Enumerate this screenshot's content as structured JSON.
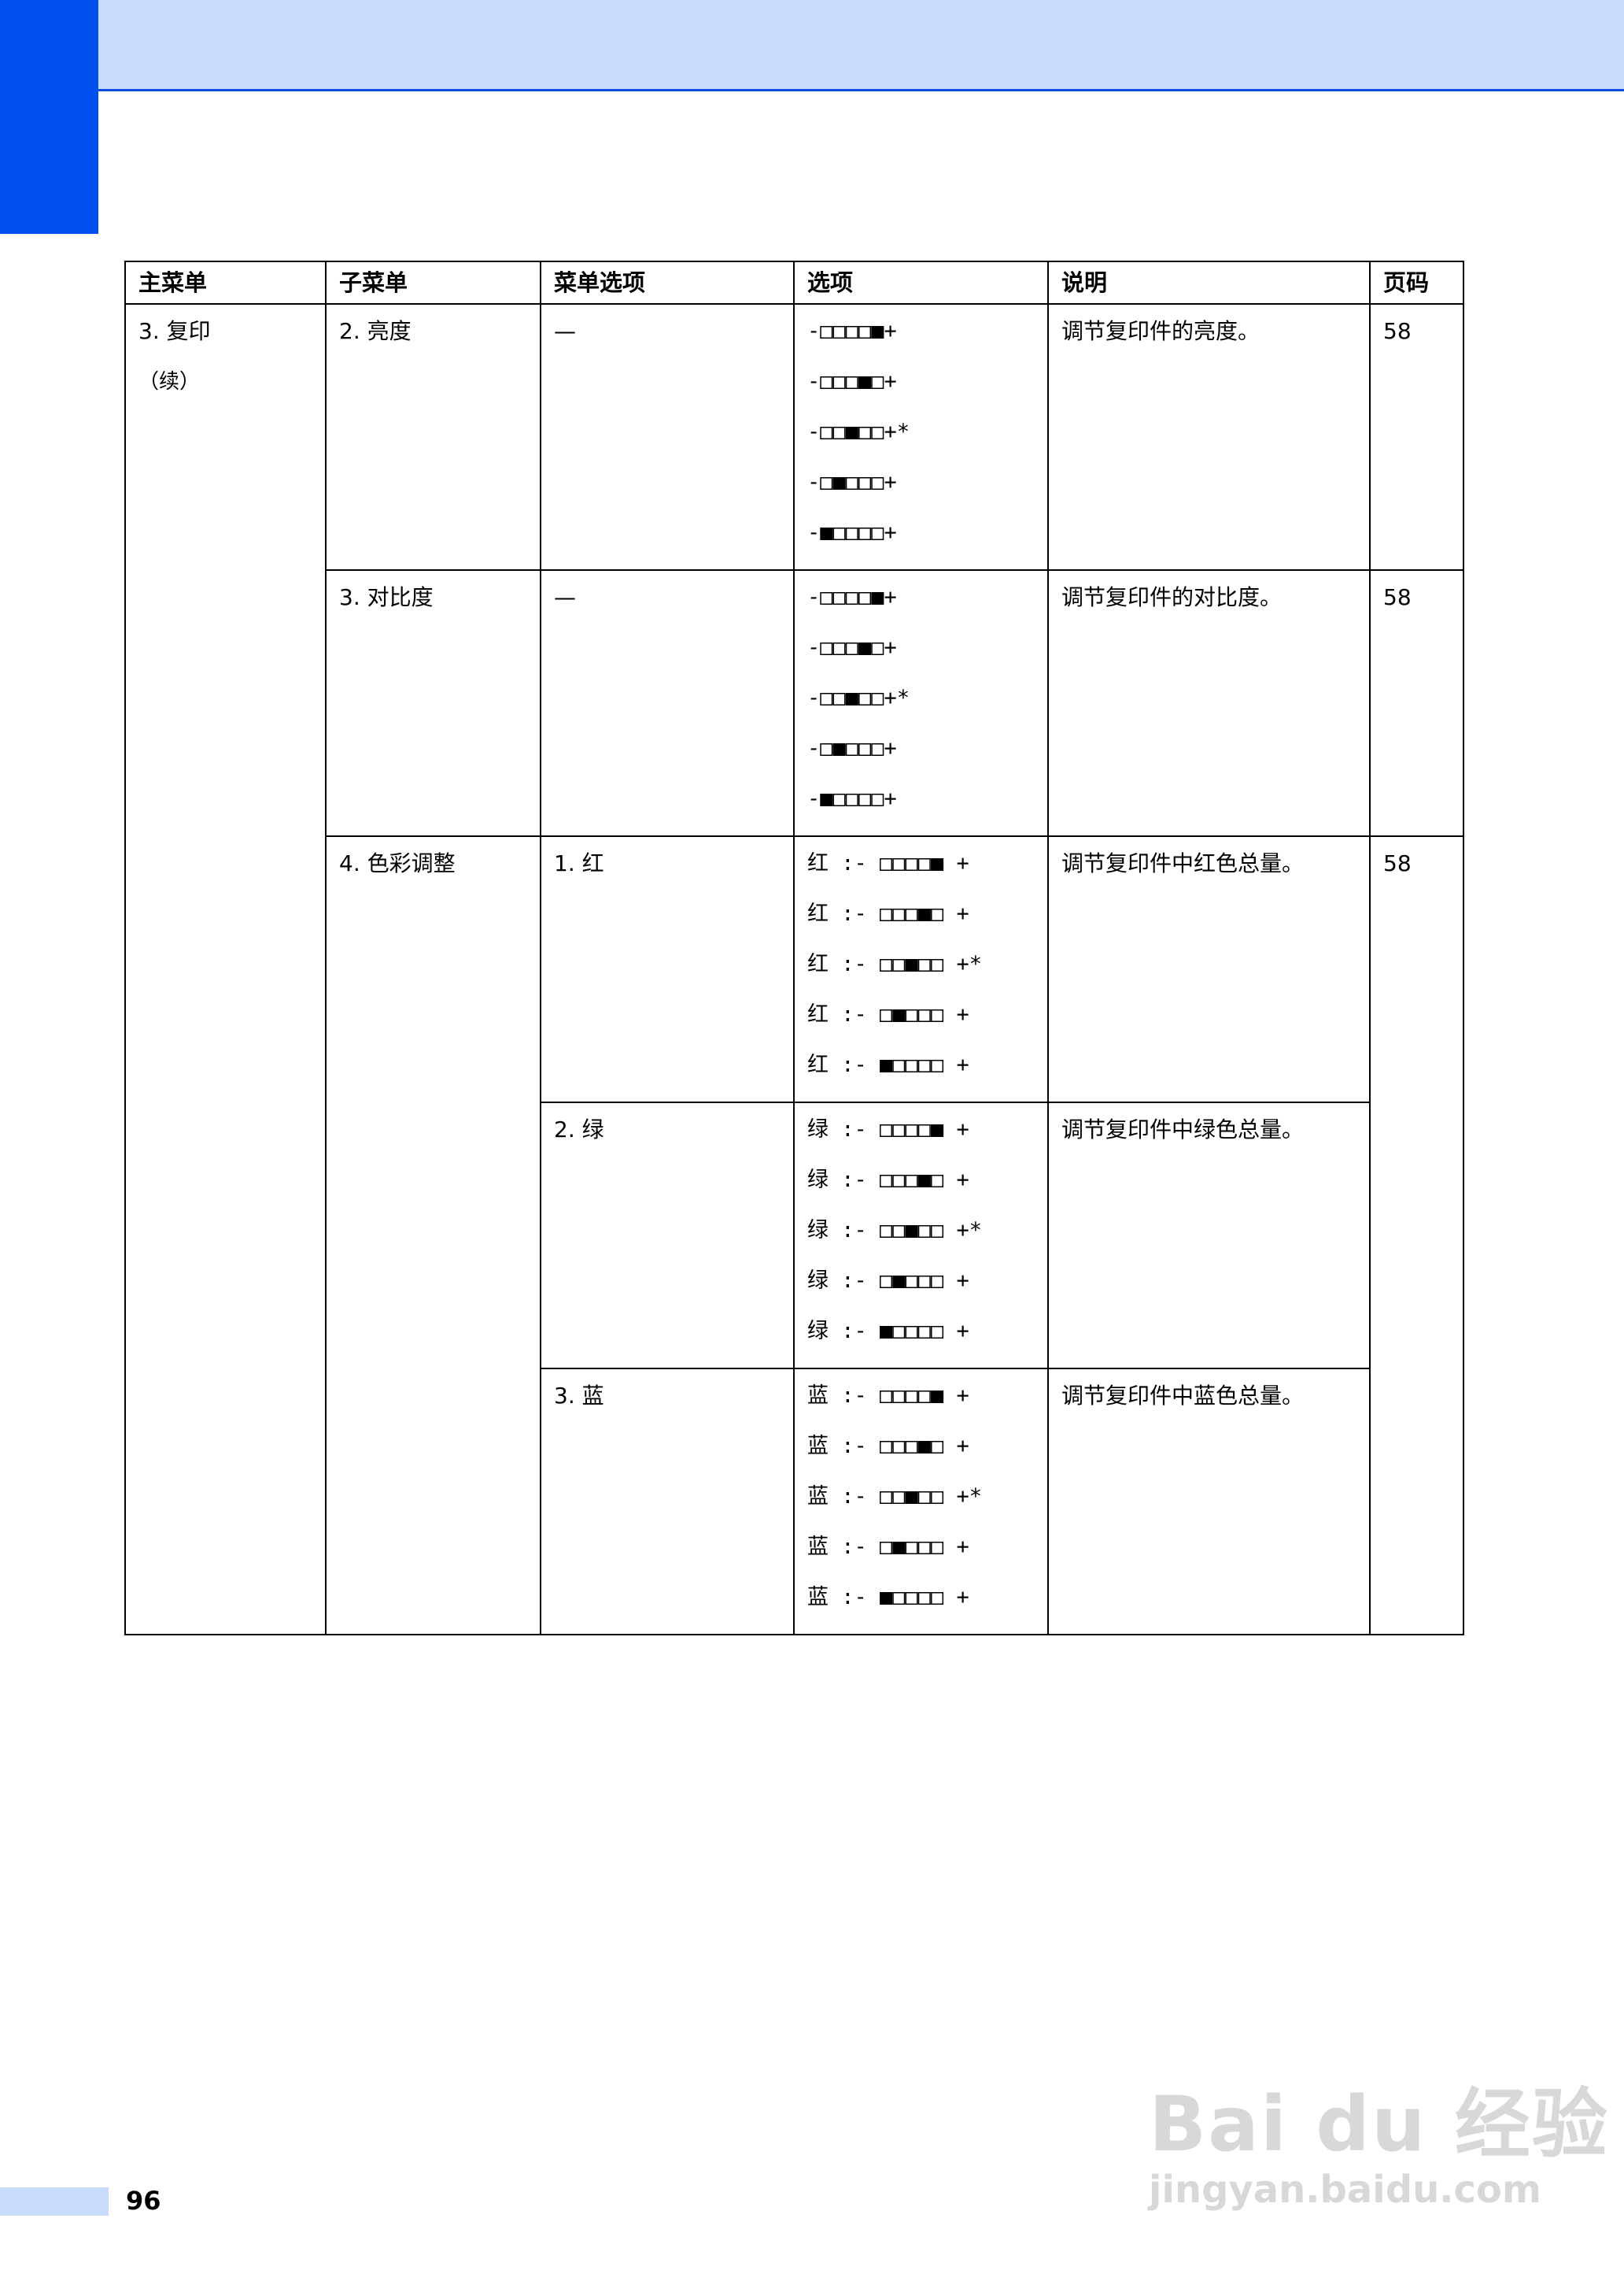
{
  "header": {
    "banner_color": "#c9dbfd",
    "accent": "#0050f0"
  },
  "table": {
    "headers": [
      "主菜单",
      "子菜单",
      "菜单选项",
      "选项",
      "说明",
      "页码"
    ],
    "main_menu": "3. 复印",
    "main_menu_cont": "（续）",
    "rows": [
      {
        "submenu": "2. 亮度",
        "menu_option": "—",
        "options": [
          "-□□□□■+",
          "-□□□■□+",
          "-□□■□□+*",
          "-□■□□□+",
          "-■□□□□+"
        ],
        "desc": "调节复印件的亮度。",
        "page": "58"
      },
      {
        "submenu": "3. 对比度",
        "menu_option": "—",
        "options": [
          "-□□□□■+",
          "-□□□■□+",
          "-□□■□□+*",
          "-□■□□□+",
          "-■□□□□+"
        ],
        "desc": "调节复印件的对比度。",
        "page": "58"
      },
      {
        "submenu": "4. 色彩调整",
        "page": "58",
        "sub": [
          {
            "menu_option": "1. 红",
            "options": [
              "红 :- □□□□■ +",
              "红 :- □□□■□ +",
              "红 :- □□■□□ +*",
              "红 :- □■□□□ +",
              "红 :- ■□□□□ +"
            ],
            "desc": "调节复印件中红色总量。"
          },
          {
            "menu_option": "2. 绿",
            "options": [
              "绿 :- □□□□■ +",
              "绿 :- □□□■□ +",
              "绿 :- □□■□□ +*",
              "绿 :- □■□□□ +",
              "绿 :- ■□□□□ +"
            ],
            "desc": "调节复印件中绿色总量。"
          },
          {
            "menu_option": "3. 蓝",
            "options": [
              "蓝 :- □□□□■ +",
              "蓝 :- □□□■□ +",
              "蓝 :- □□■□□ +*",
              "蓝 :- □■□□□ +",
              "蓝 :- ■□□□□ +"
            ],
            "desc": "调节复印件中蓝色总量。"
          }
        ]
      }
    ]
  },
  "footer": {
    "page_number": "96"
  },
  "watermark": {
    "logo": "Bai du 经验",
    "url": "jingyan.baidu.com"
  }
}
